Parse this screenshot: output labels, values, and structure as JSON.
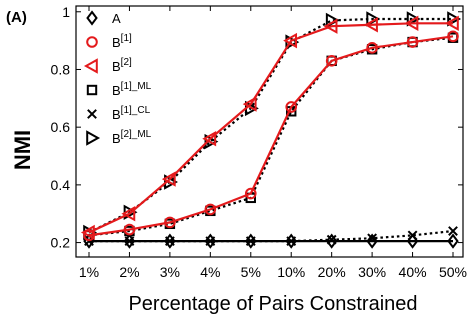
{
  "panel_label": "(A)",
  "chart_data": {
    "type": "line",
    "title": "",
    "xlabel": "Percentage of Pairs Constrained",
    "ylabel": "NMI",
    "categories": [
      "1%",
      "2%",
      "3%",
      "4%",
      "5%",
      "10%",
      "20%",
      "30%",
      "40%",
      "50%"
    ],
    "ylim": [
      0.15,
      1.02
    ],
    "yticks": [
      0.2,
      0.4,
      0.6,
      0.8,
      1
    ],
    "ytick_labels": [
      "0.2",
      "0.4",
      "0.6",
      "0.8",
      "1"
    ],
    "grid": false,
    "legend_position": "top-left",
    "series": [
      {
        "name": "A",
        "name_main": "A",
        "name_sup": "",
        "color": "#000000",
        "line_style": "solid",
        "marker": "diamond",
        "values": [
          0.205,
          0.205,
          0.205,
          0.205,
          0.205,
          0.205,
          0.205,
          0.205,
          0.205,
          0.205
        ]
      },
      {
        "name": "B[1]",
        "name_main": "B",
        "name_sup": "[1]",
        "color": "#e41a1c",
        "line_style": "solid",
        "marker": "circle",
        "values": [
          0.225,
          0.245,
          0.27,
          0.315,
          0.37,
          0.67,
          0.83,
          0.875,
          0.895,
          0.915
        ]
      },
      {
        "name": "B[2]",
        "name_main": "B",
        "name_sup": "[2]",
        "color": "#e41a1c",
        "line_style": "solid",
        "marker": "triangle-left",
        "values": [
          0.235,
          0.3,
          0.42,
          0.56,
          0.68,
          0.9,
          0.95,
          0.955,
          0.96,
          0.96
        ]
      },
      {
        "name": "B[1]_ML",
        "name_main": "B",
        "name_sup": "[1]_ML",
        "color": "#000000",
        "line_style": "dotted",
        "marker": "square",
        "values": [
          0.225,
          0.24,
          0.265,
          0.31,
          0.355,
          0.655,
          0.83,
          0.87,
          0.895,
          0.91
        ]
      },
      {
        "name": "B[1]_CL",
        "name_main": "B",
        "name_sup": "[1]_CL",
        "color": "#000000",
        "line_style": "dotted",
        "marker": "x",
        "values": [
          0.205,
          0.205,
          0.205,
          0.205,
          0.205,
          0.205,
          0.21,
          0.215,
          0.225,
          0.24
        ]
      },
      {
        "name": "B[2]_ML",
        "name_main": "B",
        "name_sup": "[2]_ML",
        "color": "#000000",
        "line_style": "dotted",
        "marker": "triangle-right",
        "values": [
          0.235,
          0.305,
          0.41,
          0.55,
          0.665,
          0.895,
          0.97,
          0.975,
          0.975,
          0.975
        ]
      }
    ]
  }
}
